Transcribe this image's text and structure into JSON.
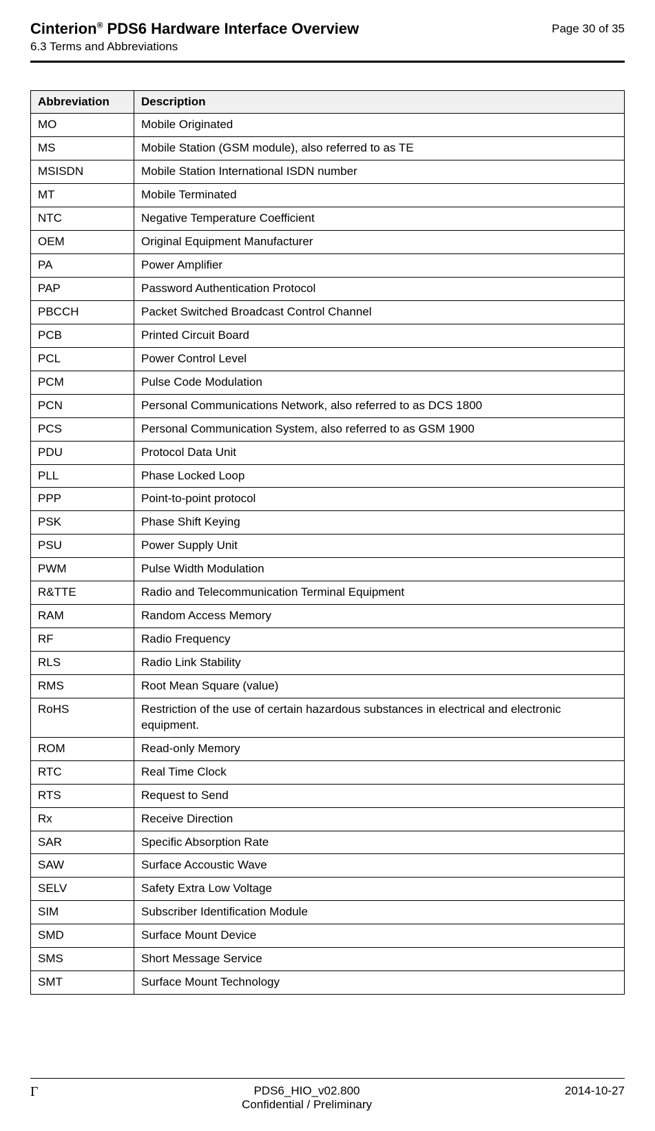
{
  "header": {
    "product": "Cinterion",
    "reg": "®",
    "title_rest": " PDS6 Hardware Interface Overview",
    "section": "6.3 Terms and Abbreviations",
    "page_label": "Page 30 of 35"
  },
  "table": {
    "col_abbrev": "Abbreviation",
    "col_desc": "Description",
    "rows": [
      {
        "a": "MO",
        "d": "Mobile Originated"
      },
      {
        "a": "MS",
        "d": "Mobile Station (GSM module), also referred to as TE"
      },
      {
        "a": "MSISDN",
        "d": "Mobile Station International ISDN number"
      },
      {
        "a": "MT",
        "d": "Mobile Terminated"
      },
      {
        "a": "NTC",
        "d": "Negative Temperature Coefficient"
      },
      {
        "a": "OEM",
        "d": "Original Equipment Manufacturer"
      },
      {
        "a": "PA",
        "d": "Power Amplifier"
      },
      {
        "a": "PAP",
        "d": "Password Authentication Protocol"
      },
      {
        "a": "PBCCH",
        "d": "Packet Switched Broadcast Control Channel"
      },
      {
        "a": "PCB",
        "d": "Printed Circuit Board"
      },
      {
        "a": "PCL",
        "d": "Power Control Level"
      },
      {
        "a": "PCM",
        "d": "Pulse Code Modulation"
      },
      {
        "a": "PCN",
        "d": "Personal Communications Network, also referred to as DCS 1800"
      },
      {
        "a": "PCS",
        "d": "Personal Communication System, also referred to as GSM 1900"
      },
      {
        "a": "PDU",
        "d": "Protocol Data Unit"
      },
      {
        "a": "PLL",
        "d": "Phase Locked Loop"
      },
      {
        "a": "PPP",
        "d": "Point-to-point protocol"
      },
      {
        "a": "PSK",
        "d": "Phase Shift Keying"
      },
      {
        "a": "PSU",
        "d": "Power Supply Unit"
      },
      {
        "a": "PWM",
        "d": "Pulse Width Modulation"
      },
      {
        "a": "R&TTE",
        "d": "Radio and Telecommunication Terminal Equipment"
      },
      {
        "a": "RAM",
        "d": "Random Access Memory"
      },
      {
        "a": "RF",
        "d": "Radio Frequency"
      },
      {
        "a": "RLS",
        "d": "Radio Link Stability"
      },
      {
        "a": "RMS",
        "d": "Root Mean Square (value)"
      },
      {
        "a": "RoHS",
        "d": "Restriction of the use of certain hazardous substances in electrical and electronic equipment."
      },
      {
        "a": "ROM",
        "d": "Read-only Memory"
      },
      {
        "a": "RTC",
        "d": "Real Time Clock"
      },
      {
        "a": "RTS",
        "d": "Request to Send"
      },
      {
        "a": "Rx",
        "d": "Receive Direction"
      },
      {
        "a": "SAR",
        "d": "Specific Absorption Rate"
      },
      {
        "a": "SAW",
        "d": "Surface Accoustic Wave"
      },
      {
        "a": "SELV",
        "d": "Safety Extra Low Voltage"
      },
      {
        "a": "SIM",
        "d": "Subscriber Identification Module"
      },
      {
        "a": "SMD",
        "d": "Surface Mount Device"
      },
      {
        "a": "SMS",
        "d": "Short Message Service"
      },
      {
        "a": "SMT",
        "d": "Surface Mount Technology"
      }
    ]
  },
  "footer": {
    "gamma": "Γ",
    "docref": "PDS6_HIO_v02.800",
    "conf": "Confidential / Preliminary",
    "date": "2014-10-27"
  }
}
